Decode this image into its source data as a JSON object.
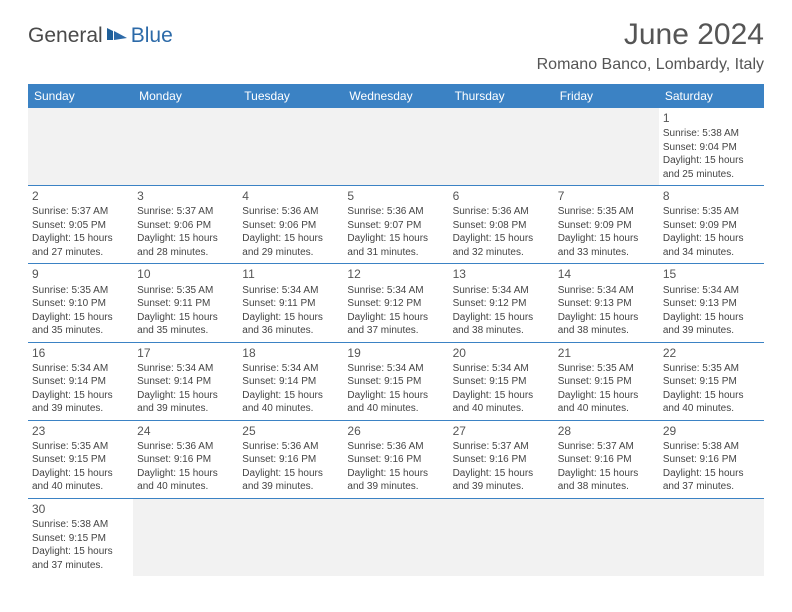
{
  "logo": {
    "text1": "General",
    "text2": "Blue"
  },
  "title": "June 2024",
  "location": "Romano Banco, Lombardy, Italy",
  "colors": {
    "header_bg": "#3b82c4",
    "header_text": "#ffffff",
    "border": "#3b82c4",
    "empty_bg": "#f2f2f2",
    "text": "#444444",
    "title_color": "#555555",
    "logo_gray": "#4a4a4a",
    "logo_blue": "#2c6aa8"
  },
  "dayNames": [
    "Sunday",
    "Monday",
    "Tuesday",
    "Wednesday",
    "Thursday",
    "Friday",
    "Saturday"
  ],
  "weeks": [
    [
      null,
      null,
      null,
      null,
      null,
      null,
      {
        "n": "1",
        "sr": "Sunrise: 5:38 AM",
        "ss": "Sunset: 9:04 PM",
        "dl": "Daylight: 15 hours and 25 minutes."
      }
    ],
    [
      {
        "n": "2",
        "sr": "Sunrise: 5:37 AM",
        "ss": "Sunset: 9:05 PM",
        "dl": "Daylight: 15 hours and 27 minutes."
      },
      {
        "n": "3",
        "sr": "Sunrise: 5:37 AM",
        "ss": "Sunset: 9:06 PM",
        "dl": "Daylight: 15 hours and 28 minutes."
      },
      {
        "n": "4",
        "sr": "Sunrise: 5:36 AM",
        "ss": "Sunset: 9:06 PM",
        "dl": "Daylight: 15 hours and 29 minutes."
      },
      {
        "n": "5",
        "sr": "Sunrise: 5:36 AM",
        "ss": "Sunset: 9:07 PM",
        "dl": "Daylight: 15 hours and 31 minutes."
      },
      {
        "n": "6",
        "sr": "Sunrise: 5:36 AM",
        "ss": "Sunset: 9:08 PM",
        "dl": "Daylight: 15 hours and 32 minutes."
      },
      {
        "n": "7",
        "sr": "Sunrise: 5:35 AM",
        "ss": "Sunset: 9:09 PM",
        "dl": "Daylight: 15 hours and 33 minutes."
      },
      {
        "n": "8",
        "sr": "Sunrise: 5:35 AM",
        "ss": "Sunset: 9:09 PM",
        "dl": "Daylight: 15 hours and 34 minutes."
      }
    ],
    [
      {
        "n": "9",
        "sr": "Sunrise: 5:35 AM",
        "ss": "Sunset: 9:10 PM",
        "dl": "Daylight: 15 hours and 35 minutes."
      },
      {
        "n": "10",
        "sr": "Sunrise: 5:35 AM",
        "ss": "Sunset: 9:11 PM",
        "dl": "Daylight: 15 hours and 35 minutes."
      },
      {
        "n": "11",
        "sr": "Sunrise: 5:34 AM",
        "ss": "Sunset: 9:11 PM",
        "dl": "Daylight: 15 hours and 36 minutes."
      },
      {
        "n": "12",
        "sr": "Sunrise: 5:34 AM",
        "ss": "Sunset: 9:12 PM",
        "dl": "Daylight: 15 hours and 37 minutes."
      },
      {
        "n": "13",
        "sr": "Sunrise: 5:34 AM",
        "ss": "Sunset: 9:12 PM",
        "dl": "Daylight: 15 hours and 38 minutes."
      },
      {
        "n": "14",
        "sr": "Sunrise: 5:34 AM",
        "ss": "Sunset: 9:13 PM",
        "dl": "Daylight: 15 hours and 38 minutes."
      },
      {
        "n": "15",
        "sr": "Sunrise: 5:34 AM",
        "ss": "Sunset: 9:13 PM",
        "dl": "Daylight: 15 hours and 39 minutes."
      }
    ],
    [
      {
        "n": "16",
        "sr": "Sunrise: 5:34 AM",
        "ss": "Sunset: 9:14 PM",
        "dl": "Daylight: 15 hours and 39 minutes."
      },
      {
        "n": "17",
        "sr": "Sunrise: 5:34 AM",
        "ss": "Sunset: 9:14 PM",
        "dl": "Daylight: 15 hours and 39 minutes."
      },
      {
        "n": "18",
        "sr": "Sunrise: 5:34 AM",
        "ss": "Sunset: 9:14 PM",
        "dl": "Daylight: 15 hours and 40 minutes."
      },
      {
        "n": "19",
        "sr": "Sunrise: 5:34 AM",
        "ss": "Sunset: 9:15 PM",
        "dl": "Daylight: 15 hours and 40 minutes."
      },
      {
        "n": "20",
        "sr": "Sunrise: 5:34 AM",
        "ss": "Sunset: 9:15 PM",
        "dl": "Daylight: 15 hours and 40 minutes."
      },
      {
        "n": "21",
        "sr": "Sunrise: 5:35 AM",
        "ss": "Sunset: 9:15 PM",
        "dl": "Daylight: 15 hours and 40 minutes."
      },
      {
        "n": "22",
        "sr": "Sunrise: 5:35 AM",
        "ss": "Sunset: 9:15 PM",
        "dl": "Daylight: 15 hours and 40 minutes."
      }
    ],
    [
      {
        "n": "23",
        "sr": "Sunrise: 5:35 AM",
        "ss": "Sunset: 9:15 PM",
        "dl": "Daylight: 15 hours and 40 minutes."
      },
      {
        "n": "24",
        "sr": "Sunrise: 5:36 AM",
        "ss": "Sunset: 9:16 PM",
        "dl": "Daylight: 15 hours and 40 minutes."
      },
      {
        "n": "25",
        "sr": "Sunrise: 5:36 AM",
        "ss": "Sunset: 9:16 PM",
        "dl": "Daylight: 15 hours and 39 minutes."
      },
      {
        "n": "26",
        "sr": "Sunrise: 5:36 AM",
        "ss": "Sunset: 9:16 PM",
        "dl": "Daylight: 15 hours and 39 minutes."
      },
      {
        "n": "27",
        "sr": "Sunrise: 5:37 AM",
        "ss": "Sunset: 9:16 PM",
        "dl": "Daylight: 15 hours and 39 minutes."
      },
      {
        "n": "28",
        "sr": "Sunrise: 5:37 AM",
        "ss": "Sunset: 9:16 PM",
        "dl": "Daylight: 15 hours and 38 minutes."
      },
      {
        "n": "29",
        "sr": "Sunrise: 5:38 AM",
        "ss": "Sunset: 9:16 PM",
        "dl": "Daylight: 15 hours and 37 minutes."
      }
    ],
    [
      {
        "n": "30",
        "sr": "Sunrise: 5:38 AM",
        "ss": "Sunset: 9:15 PM",
        "dl": "Daylight: 15 hours and 37 minutes."
      },
      null,
      null,
      null,
      null,
      null,
      null
    ]
  ]
}
